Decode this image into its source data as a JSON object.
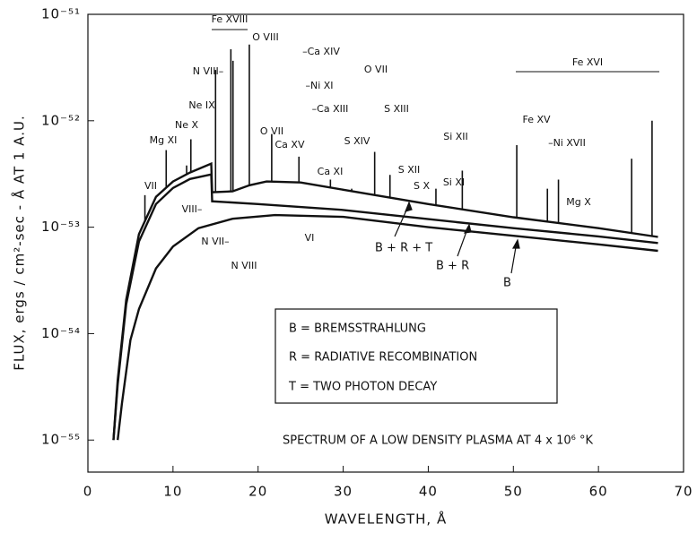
{
  "chart_data": {
    "type": "line",
    "caption": "SPECTRUM OF A LOW DENSITY PLASMA AT 4 x 10⁶ °K",
    "x_label": "WAVELENGTH, Å",
    "y_label": "FLUX, ergs / cm²-sec - Å AT 1 A.U.",
    "yscale": "log",
    "xlim": [
      0,
      70
    ],
    "xticks": [
      0,
      10,
      20,
      30,
      40,
      50,
      60,
      70
    ],
    "ylim": [
      5e-56,
      1e-51
    ],
    "yticks": [
      {
        "value": 1e-51,
        "label": "10⁻⁵¹"
      },
      {
        "value": 1e-52,
        "label": "10⁻⁵²"
      },
      {
        "value": 1e-53,
        "label": "10⁻⁵³"
      },
      {
        "value": 1e-54,
        "label": "10⁻⁵⁴"
      },
      {
        "value": 1e-55,
        "label": "10⁻⁵⁵"
      }
    ],
    "color": "#111111",
    "series": [
      {
        "name": "B",
        "color": "#111111",
        "x": [
          3.5,
          4,
          5,
          6,
          8,
          10,
          13,
          17,
          22,
          30,
          40,
          50,
          60,
          67
        ],
        "values": [
          1e-55,
          2.2e-55,
          8.7e-55,
          1.7e-54,
          4.1e-54,
          6.6e-54,
          9.8e-54,
          1.2e-53,
          1.3e-53,
          1.25e-53,
          1e-53,
          8.3e-54,
          6.9e-54,
          6e-54
        ]
      },
      {
        "name": "B + R",
        "color": "#111111",
        "x": [
          3,
          3.5,
          4.5,
          6,
          8,
          10,
          12,
          14.5,
          14.6,
          20,
          30,
          40,
          50,
          60,
          67
        ],
        "values": [
          1e-55,
          3.32e-55,
          1.89e-54,
          7.34e-54,
          1.65e-53,
          2.34e-53,
          2.84e-53,
          3.13e-53,
          1.75e-53,
          1.65e-53,
          1.45e-53,
          1.19e-53,
          9.8e-54,
          8.2e-54,
          7.1e-54
        ]
      },
      {
        "name": "B + R + T",
        "color": "#111111",
        "x": [
          3,
          3.5,
          4.5,
          6,
          8,
          10,
          12,
          14.5,
          14.6,
          17,
          19,
          21,
          25,
          30,
          40,
          50,
          60,
          67
        ],
        "values": [
          1e-55,
          3.66e-55,
          2.08e-54,
          8.6e-54,
          1.93e-53,
          2.69e-53,
          3.26e-53,
          3.95e-53,
          2.13e-53,
          2.17e-53,
          2.48e-53,
          2.69e-53,
          2.63e-53,
          2.25e-53,
          1.65e-53,
          1.24e-53,
          9.8e-54,
          8.1e-54
        ]
      }
    ],
    "emission_lines": {
      "x": [
        6.7,
        9.2,
        11.6,
        12.1,
        15.0,
        16.8,
        17.05,
        18.97,
        21.6,
        24.8,
        28.5,
        31.0,
        33.7,
        35.5,
        40.9,
        44.0,
        50.4,
        54.0,
        55.3,
        63.9,
        66.3
      ],
      "values": [
        2e-53,
        5.3e-53,
        3.8e-53,
        6.7e-53,
        3e-52,
        4.7e-52,
        3.66e-52,
        5.2e-52,
        7.5e-53,
        4.6e-53,
        2.8e-53,
        2.3e-53,
        5.1e-53,
        3.1e-53,
        2.3e-53,
        3.4e-53,
        5.9e-53,
        2.3e-53,
        2.8e-53,
        4.4e-53,
        1e-52
      ]
    },
    "annotations": [
      "Fe XVIII",
      "O VIII",
      "–Ca XIV",
      "–Ni XI",
      "O VII",
      "N VIII–",
      "Ne IX",
      "Ne X",
      "Mg XI",
      "O VII",
      "–Ca XIII",
      "S XIII",
      "S XIV",
      "Ca XV",
      "Si XII",
      "Fe XVI",
      "Fe XV",
      "–Ni XVII",
      "Ca XI",
      "S XII",
      "S X",
      "Si XI",
      "Mg X",
      "VII",
      "VIII–",
      "N VII–",
      "N VIII",
      "VI"
    ],
    "legend": [
      "B  =  BREMSSTRAHLUNG",
      "R  =  RADIATIVE RECOMBINATION",
      "T  =  TWO PHOTON DECAY"
    ]
  }
}
